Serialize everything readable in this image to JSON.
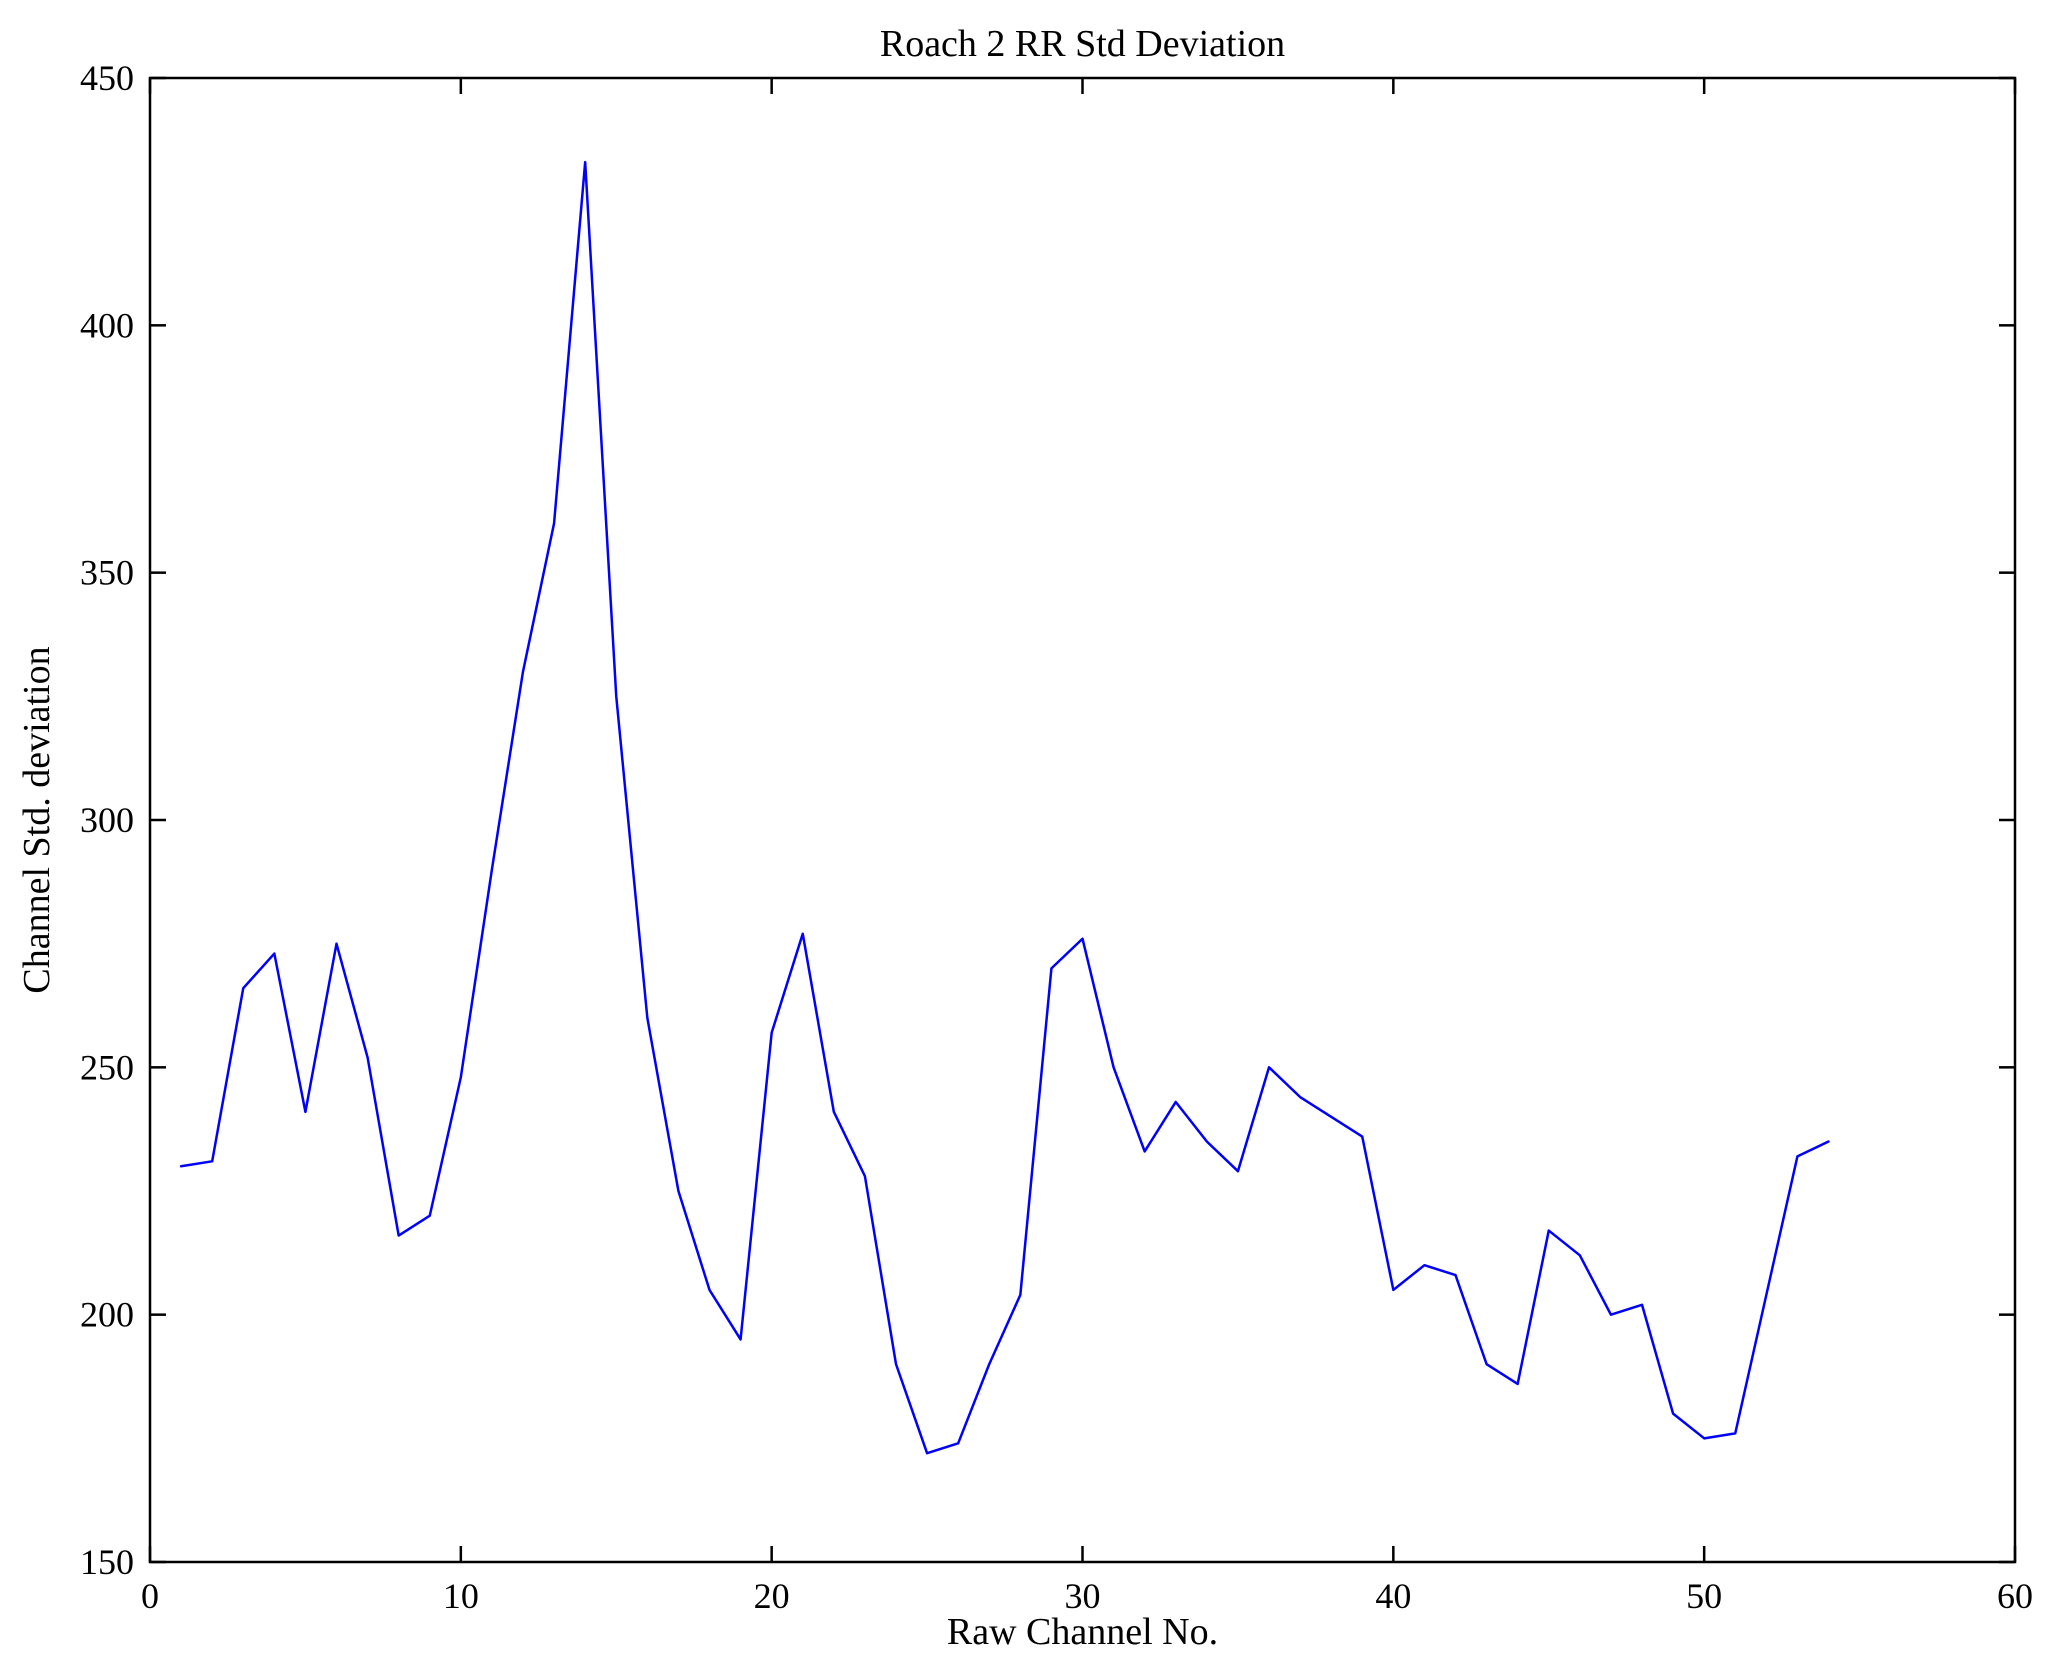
{
  "figure": {
    "title": "Roach 2 RR Std Deviation",
    "xlabel": "Raw Channel No.",
    "ylabel": "Channel Std. deviation"
  },
  "chart_data": {
    "type": "line",
    "title": "Roach 2 RR Std Deviation",
    "xlabel": "Raw Channel No.",
    "ylabel": "Channel Std. deviation",
    "xlim": [
      0,
      60
    ],
    "ylim": [
      150,
      450
    ],
    "xticks": [
      0,
      10,
      20,
      30,
      40,
      50,
      60
    ],
    "yticks": [
      150,
      200,
      250,
      300,
      350,
      400,
      450
    ],
    "grid": false,
    "legend": "none",
    "line_color": "#0000ff",
    "axis_color": "#000000",
    "x": [
      1,
      2,
      3,
      4,
      5,
      6,
      7,
      8,
      9,
      10,
      11,
      12,
      13,
      14,
      15,
      16,
      17,
      18,
      19,
      20,
      21,
      22,
      23,
      24,
      25,
      26,
      27,
      28,
      29,
      30,
      31,
      32,
      33,
      34,
      35,
      36,
      37,
      38,
      39,
      40,
      41,
      42,
      43,
      44,
      45,
      46,
      47,
      48,
      49,
      50,
      51,
      52,
      53,
      54
    ],
    "values": [
      230,
      231,
      266,
      273,
      241,
      275,
      252,
      216,
      220,
      248,
      290,
      330,
      360,
      433,
      325,
      260,
      225,
      205,
      195,
      257,
      277,
      241,
      228,
      190,
      172,
      174,
      190,
      204,
      270,
      276,
      250,
      233,
      243,
      235,
      229,
      250,
      244,
      240,
      236,
      205,
      210,
      208,
      190,
      186,
      217,
      212,
      200,
      202,
      180,
      175,
      176,
      204,
      232,
      235
    ]
  }
}
